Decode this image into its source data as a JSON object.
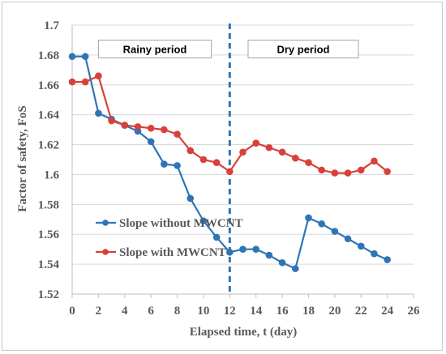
{
  "chart_data": {
    "type": "line",
    "xlabel": "Elapsed time, t (day)",
    "ylabel": "Factor of safety, FoS",
    "xlim": [
      0,
      26
    ],
    "ylim": [
      1.52,
      1.7
    ],
    "x_ticks": [
      "0",
      "2",
      "4",
      "6",
      "8",
      "10",
      "12",
      "14",
      "16",
      "18",
      "20",
      "22",
      "24",
      "26"
    ],
    "y_ticks": [
      "1.52",
      "1.54",
      "1.56",
      "1.58",
      "1.6",
      "1.62",
      "1.64",
      "1.66",
      "1.68",
      "1.7"
    ],
    "grid": "horizontal",
    "legend_position": "lower-left",
    "series": [
      {
        "name": "Slope without MWCNT",
        "color": "#2e75b6",
        "x": [
          0,
          1,
          2,
          3,
          4,
          5,
          6,
          7,
          8,
          9,
          10,
          11,
          12,
          13,
          14,
          15,
          16,
          17,
          18,
          19,
          20,
          21,
          22,
          23,
          24
        ],
        "values": [
          1.679,
          1.679,
          1.641,
          1.637,
          1.633,
          1.629,
          1.622,
          1.607,
          1.606,
          1.584,
          1.569,
          1.558,
          1.548,
          1.55,
          1.55,
          1.546,
          1.541,
          1.537,
          1.571,
          1.567,
          1.562,
          1.557,
          1.552,
          1.547,
          1.543
        ]
      },
      {
        "name": "Slope with MWCNT",
        "color": "#d9403a",
        "x": [
          0,
          1,
          2,
          3,
          4,
          5,
          6,
          7,
          8,
          9,
          10,
          11,
          12,
          13,
          14,
          15,
          16,
          17,
          18,
          19,
          20,
          21,
          22,
          23,
          24
        ],
        "values": [
          1.662,
          1.662,
          1.666,
          1.636,
          1.633,
          1.632,
          1.631,
          1.63,
          1.627,
          1.616,
          1.61,
          1.608,
          1.602,
          1.615,
          1.621,
          1.618,
          1.615,
          1.611,
          1.608,
          1.603,
          1.601,
          1.601,
          1.603,
          1.609,
          1.602
        ]
      }
    ],
    "divider": {
      "x": 12,
      "color": "#2e75b6"
    },
    "annotations": [
      {
        "text": "Rainy period",
        "x_from": 2,
        "x_to": 10.6,
        "y": 1.684
      },
      {
        "text": "Dry period",
        "x_from": 13.4,
        "x_to": 21.8,
        "y": 1.684
      }
    ]
  }
}
